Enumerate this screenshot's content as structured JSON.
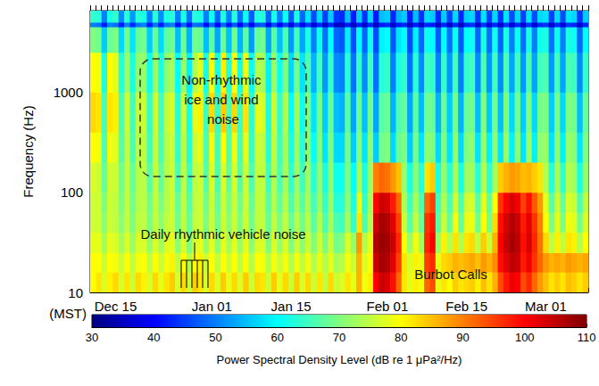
{
  "chart_data": {
    "type": "heatmap",
    "xlabel": "(MST)",
    "ylabel": "Frequency (Hz)",
    "log": "y",
    "grid": false,
    "ylim": [
      10,
      6500
    ],
    "yticks": [
      10,
      100,
      1000
    ],
    "categories": [
      null,
      null,
      null,
      null,
      "Dec 15",
      null,
      null,
      null,
      null,
      null,
      null,
      null,
      null,
      null,
      null,
      null,
      null,
      null,
      null,
      null,
      null,
      "Jan 01",
      null,
      null,
      null,
      null,
      null,
      null,
      null,
      null,
      null,
      null,
      null,
      null,
      null,
      "Jan 15",
      null,
      null,
      null,
      null,
      null,
      null,
      null,
      null,
      null,
      null,
      null,
      null,
      null,
      null,
      null,
      null,
      "Feb 01",
      null,
      null,
      null,
      null,
      null,
      null,
      null,
      null,
      null,
      null,
      null,
      null,
      null,
      "Feb 15",
      null,
      null,
      null,
      null,
      null,
      null,
      null,
      null,
      null,
      null,
      null,
      null,
      null,
      "Mar 01",
      null,
      null,
      null,
      null,
      null,
      null,
      null
    ],
    "y_bins": [
      10,
      16,
      25,
      40,
      63,
      100,
      200,
      400,
      1000,
      2500,
      4500,
      5000,
      6500
    ],
    "values": [
      [
        80,
        82,
        77,
        81,
        83,
        77,
        82,
        76,
        83,
        81,
        77,
        83,
        78,
        82,
        84,
        77,
        83,
        76,
        84,
        82,
        77,
        83,
        77,
        84,
        78,
        83,
        77,
        84,
        76,
        83,
        82,
        76,
        84,
        78,
        83,
        76,
        84,
        77,
        83,
        76,
        82,
        75,
        83,
        76,
        77,
        82,
        78,
        86,
        79,
        81,
        100,
        104,
        103,
        99,
        92,
        82,
        78,
        81,
        79,
        92,
        94,
        78,
        82,
        80,
        84,
        82,
        83,
        84,
        81,
        85,
        82,
        86,
        94,
        98,
        101,
        100,
        94,
        97,
        92,
        88,
        85,
        82,
        84,
        82,
        85,
        84,
        82,
        84
      ],
      [
        80,
        80,
        76,
        80,
        79,
        76,
        80,
        75,
        79,
        80,
        75,
        80,
        76,
        79,
        81,
        75,
        80,
        74,
        80,
        81,
        76,
        80,
        75,
        80,
        76,
        80,
        75,
        80,
        74,
        80,
        79,
        74,
        79,
        76,
        79,
        74,
        79,
        75,
        79,
        74,
        78,
        74,
        78,
        73,
        74,
        79,
        76,
        86,
        77,
        80,
        104,
        107,
        106,
        102,
        95,
        82,
        77,
        81,
        78,
        95,
        97,
        78,
        83,
        84,
        86,
        85,
        86,
        87,
        85,
        88,
        86,
        89,
        99,
        102,
        105,
        104,
        98,
        101,
        96,
        92,
        88,
        86,
        87,
        86,
        88,
        87,
        86,
        87
      ],
      [
        78,
        78,
        73,
        78,
        77,
        73,
        77,
        72,
        77,
        77,
        72,
        77,
        73,
        77,
        78,
        71,
        77,
        70,
        77,
        78,
        72,
        78,
        71,
        78,
        73,
        78,
        72,
        78,
        71,
        77,
        77,
        70,
        77,
        72,
        77,
        70,
        76,
        71,
        76,
        70,
        76,
        70,
        76,
        69,
        70,
        77,
        72,
        88,
        74,
        78,
        106,
        108,
        107,
        104,
        97,
        80,
        72,
        79,
        73,
        97,
        100,
        72,
        81,
        74,
        82,
        74,
        82,
        83,
        75,
        84,
        76,
        86,
        100,
        104,
        107,
        105,
        99,
        103,
        97,
        91,
        83,
        75,
        81,
        75,
        82,
        81,
        74,
        80
      ],
      [
        76,
        76,
        71,
        76,
        75,
        71,
        75,
        70,
        75,
        75,
        70,
        75,
        71,
        75,
        76,
        69,
        75,
        68,
        75,
        76,
        70,
        76,
        69,
        76,
        71,
        76,
        70,
        76,
        69,
        75,
        75,
        68,
        75,
        70,
        75,
        68,
        74,
        69,
        74,
        67,
        74,
        66,
        73,
        66,
        65,
        73,
        64,
        82,
        66,
        74,
        104,
        107,
        106,
        102,
        95,
        76,
        67,
        75,
        68,
        96,
        98,
        67,
        76,
        68,
        79,
        68,
        78,
        79,
        69,
        80,
        70,
        83,
        99,
        103,
        106,
        104,
        98,
        102,
        96,
        90,
        80,
        70,
        78,
        70,
        79,
        78,
        69,
        77
      ],
      [
        76,
        76,
        70,
        76,
        75,
        70,
        75,
        69,
        74,
        75,
        69,
        75,
        70,
        74,
        76,
        68,
        75,
        67,
        75,
        76,
        69,
        76,
        68,
        76,
        70,
        76,
        69,
        76,
        68,
        75,
        75,
        67,
        74,
        68,
        74,
        66,
        73,
        67,
        73,
        65,
        72,
        64,
        72,
        63,
        63,
        71,
        62,
        78,
        64,
        73,
        100,
        104,
        103,
        98,
        92,
        74,
        65,
        73,
        66,
        92,
        95,
        65,
        74,
        66,
        76,
        66,
        76,
        77,
        67,
        78,
        68,
        80,
        96,
        100,
        103,
        101,
        95,
        99,
        93,
        88,
        78,
        67,
        76,
        68,
        77,
        76,
        66,
        75
      ],
      [
        77,
        76,
        68,
        76,
        76,
        69,
        75,
        68,
        74,
        75,
        67,
        75,
        68,
        74,
        76,
        66,
        75,
        65,
        75,
        76,
        67,
        77,
        66,
        77,
        68,
        77,
        67,
        76,
        66,
        75,
        75,
        65,
        74,
        66,
        73,
        64,
        72,
        65,
        72,
        63,
        71,
        62,
        71,
        61,
        61,
        70,
        60,
        73,
        62,
        72,
        90,
        92,
        91,
        88,
        85,
        72,
        62,
        71,
        63,
        82,
        84,
        62,
        72,
        63,
        73,
        62,
        72,
        73,
        63,
        74,
        64,
        73,
        84,
        86,
        88,
        87,
        85,
        86,
        84,
        82,
        74,
        63,
        73,
        64,
        74,
        73,
        62,
        72
      ],
      [
        80,
        79,
        66,
        79,
        78,
        67,
        75,
        66,
        74,
        75,
        65,
        75,
        66,
        74,
        76,
        64,
        75,
        63,
        76,
        78,
        66,
        79,
        65,
        80,
        67,
        79,
        66,
        78,
        64,
        76,
        75,
        63,
        75,
        65,
        73,
        62,
        72,
        63,
        71,
        60,
        70,
        58,
        70,
        57,
        57,
        69,
        56,
        70,
        58,
        71,
        56,
        69,
        70,
        57,
        68,
        70,
        56,
        69,
        58,
        71,
        70,
        57,
        70,
        58,
        71,
        57,
        70,
        71,
        58,
        72,
        59,
        71,
        58,
        72,
        59,
        71,
        58,
        72,
        59,
        71,
        72,
        58,
        71,
        59,
        72,
        71,
        58,
        70
      ],
      [
        83,
        82,
        65,
        82,
        81,
        66,
        76,
        65,
        75,
        76,
        64,
        76,
        65,
        75,
        77,
        63,
        76,
        62,
        78,
        81,
        65,
        83,
        64,
        84,
        66,
        83,
        65,
        82,
        63,
        78,
        77,
        62,
        76,
        64,
        74,
        60,
        73,
        61,
        70,
        58,
        69,
        56,
        68,
        55,
        54,
        67,
        53,
        68,
        55,
        69,
        53,
        67,
        68,
        54,
        66,
        68,
        53,
        67,
        55,
        69,
        68,
        54,
        68,
        56,
        69,
        54,
        68,
        69,
        55,
        70,
        56,
        69,
        55,
        70,
        57,
        69,
        56,
        70,
        57,
        69,
        70,
        56,
        69,
        57,
        70,
        69,
        55,
        68
      ],
      [
        80,
        79,
        62,
        80,
        78,
        63,
        72,
        62,
        71,
        72,
        61,
        72,
        62,
        71,
        73,
        60,
        72,
        59,
        74,
        78,
        62,
        80,
        61,
        81,
        63,
        80,
        62,
        79,
        60,
        74,
        73,
        59,
        72,
        61,
        70,
        57,
        69,
        58,
        66,
        54,
        65,
        52,
        64,
        51,
        50,
        63,
        49,
        64,
        51,
        65,
        49,
        63,
        64,
        50,
        62,
        64,
        49,
        63,
        51,
        65,
        64,
        50,
        64,
        52,
        65,
        50,
        64,
        65,
        51,
        66,
        52,
        65,
        51,
        66,
        53,
        65,
        52,
        66,
        53,
        65,
        66,
        52,
        65,
        53,
        66,
        65,
        51,
        64
      ],
      [
        70,
        69,
        56,
        68,
        70,
        57,
        69,
        58,
        68,
        69,
        56,
        68,
        57,
        67,
        69,
        55,
        68,
        54,
        69,
        68,
        55,
        67,
        53,
        68,
        55,
        69,
        54,
        67,
        52,
        68,
        69,
        53,
        67,
        55,
        66,
        52,
        65,
        53,
        62,
        50,
        61,
        49,
        60,
        48,
        47,
        59,
        46,
        60,
        48,
        61,
        46,
        59,
        60,
        47,
        58,
        60,
        46,
        59,
        48,
        61,
        60,
        47,
        60,
        49,
        61,
        47,
        60,
        61,
        48,
        62,
        49,
        61,
        48,
        62,
        50,
        61,
        49,
        62,
        50,
        61,
        62,
        49,
        61,
        50,
        62,
        61,
        48,
        60
      ],
      [
        50,
        49,
        42,
        50,
        49,
        42,
        50,
        43,
        49,
        50,
        42,
        49,
        42,
        49,
        50,
        41,
        48,
        41,
        49,
        48,
        41,
        48,
        40,
        48,
        41,
        47,
        40,
        47,
        39,
        46,
        47,
        39,
        46,
        40,
        45,
        38,
        45,
        39,
        44,
        37,
        43,
        36,
        43,
        36,
        35,
        42,
        35,
        42,
        36,
        43,
        35,
        42,
        43,
        36,
        42,
        43,
        35,
        42,
        36,
        43,
        42,
        35,
        43,
        36,
        43,
        35,
        43,
        44,
        36,
        44,
        37,
        43,
        36,
        44,
        37,
        43,
        36,
        44,
        37,
        43,
        44,
        36,
        43,
        37,
        44,
        43,
        36,
        43
      ],
      [
        64,
        63,
        50,
        62,
        64,
        51,
        63,
        52,
        63,
        62,
        50,
        63,
        51,
        62,
        63,
        50,
        62,
        49,
        63,
        62,
        50,
        61,
        48,
        62,
        50,
        63,
        49,
        61,
        47,
        62,
        63,
        48,
        62,
        50,
        61,
        47,
        62,
        48,
        58,
        46,
        57,
        45,
        56,
        44,
        43,
        55,
        42,
        56,
        44,
        57,
        42,
        55,
        56,
        43,
        54,
        56,
        42,
        55,
        44,
        57,
        56,
        43,
        56,
        45,
        57,
        43,
        56,
        57,
        44,
        58,
        45,
        57,
        44,
        58,
        46,
        57,
        45,
        58,
        46,
        57,
        58,
        45,
        57,
        46,
        58,
        57,
        44,
        56
      ]
    ],
    "colorbar": {
      "label": "Power Spectral Density Level (dB re 1 μPa²/Hz)",
      "range": [
        30,
        110
      ],
      "ticks": [
        30,
        40,
        50,
        60,
        70,
        80,
        90,
        100,
        110
      ]
    },
    "annotations": [
      "Non-rhythmic ice and wind noise",
      "Daily rhythmic vehicle noise",
      "Burbot Calls"
    ]
  }
}
